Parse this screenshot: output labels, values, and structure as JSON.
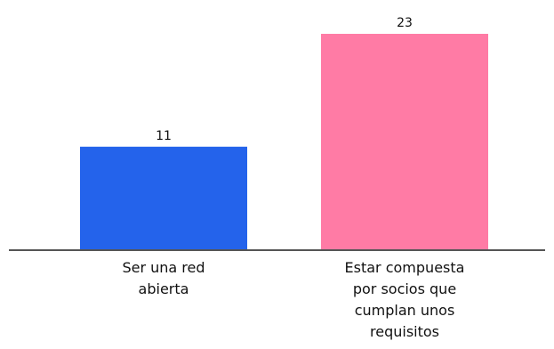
{
  "chart_data": {
    "type": "bar",
    "title": "",
    "xlabel": "",
    "ylabel": "",
    "ylim": [
      0,
      23
    ],
    "grid": false,
    "legend": "none",
    "categories": [
      [
        "Ser una red",
        "abierta"
      ],
      [
        "Estar compuesta",
        "por socios que",
        "cumplan unos",
        "requisitos"
      ]
    ],
    "values": [
      11,
      23
    ],
    "colors": [
      "#2463EB",
      "#FF7BA5"
    ],
    "axis_color": "#555555"
  }
}
